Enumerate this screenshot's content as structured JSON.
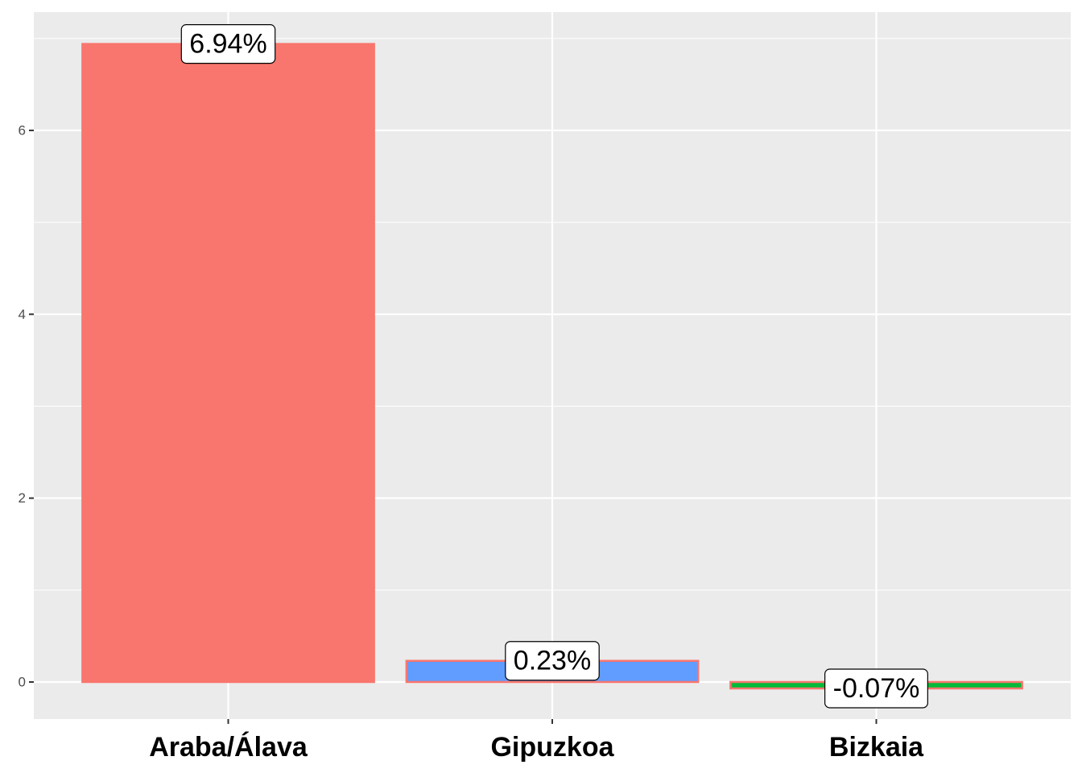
{
  "chart_data": {
    "type": "bar",
    "categories": [
      "Araba/Álava",
      "Gipuzkoa",
      "Bizkaia"
    ],
    "values": [
      6.94,
      0.23,
      -0.07
    ],
    "value_labels": [
      "6.94%",
      "0.23%",
      "-0.07%"
    ],
    "colors": [
      "#F8766D",
      "#619CFF",
      "#00BA38"
    ],
    "outline_color": "#F8766D",
    "ylim": [
      -0.403,
      7.287
    ],
    "yticks": [
      0,
      2,
      4,
      6
    ],
    "minor_yticks": [
      1,
      3,
      5,
      7
    ],
    "grid": true
  }
}
